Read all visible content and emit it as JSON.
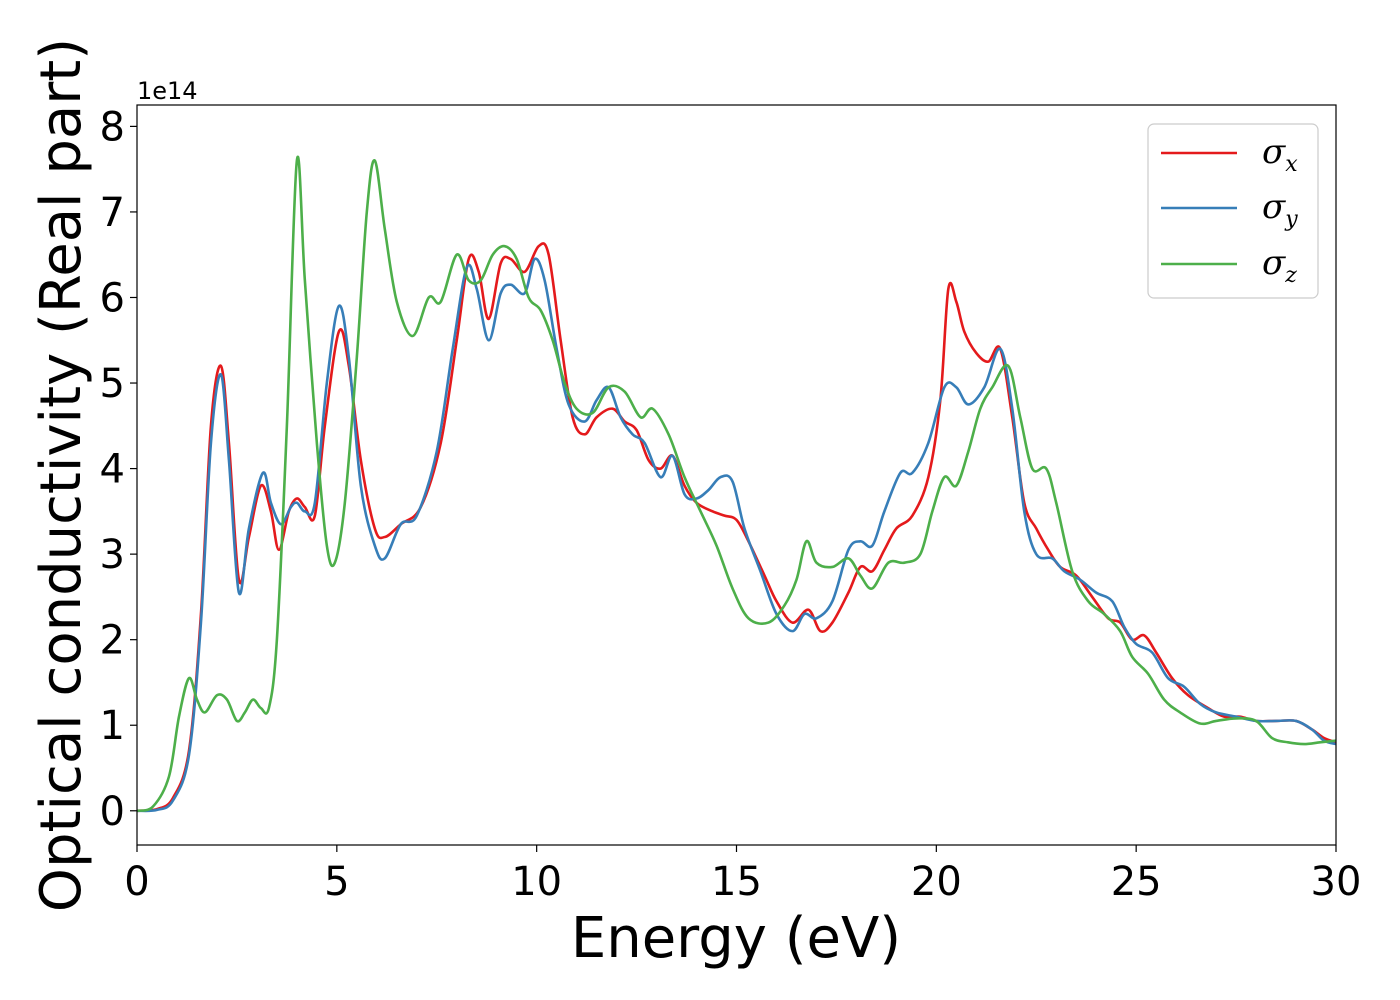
{
  "chart_data": {
    "type": "line",
    "xlabel": "Energy (eV)",
    "ylabel": "Optical conductivity (Real part)",
    "y_offset_text": "1e14",
    "y_scale_factor": 100000000000000.0,
    "xlim": [
      0,
      30
    ],
    "ylim": [
      -0.4,
      8.25
    ],
    "x_ticks": [
      0,
      5,
      10,
      15,
      20,
      25,
      30
    ],
    "x_tick_labels": [
      "0",
      "5",
      "10",
      "15",
      "20",
      "25",
      "30"
    ],
    "y_ticks": [
      0,
      1,
      2,
      3,
      4,
      5,
      6,
      7,
      8
    ],
    "y_tick_labels": [
      "0",
      "1",
      "2",
      "3",
      "4",
      "5",
      "6",
      "7",
      "8"
    ],
    "grid": false,
    "legend_position": "top-right",
    "series": [
      {
        "name": "σx",
        "symbol": "σ",
        "subscript": "x",
        "color": "#e41a1c",
        "points": [
          [
            0,
            0
          ],
          [
            0.5,
            0.02
          ],
          [
            0.9,
            0.15
          ],
          [
            1.3,
            0.7
          ],
          [
            1.6,
            2.3
          ],
          [
            1.85,
            4.5
          ],
          [
            2.1,
            5.2
          ],
          [
            2.3,
            4.3
          ],
          [
            2.55,
            2.7
          ],
          [
            2.8,
            3.2
          ],
          [
            3.1,
            3.8
          ],
          [
            3.35,
            3.5
          ],
          [
            3.55,
            3.05
          ],
          [
            3.8,
            3.5
          ],
          [
            4.0,
            3.65
          ],
          [
            4.2,
            3.55
          ],
          [
            4.45,
            3.45
          ],
          [
            4.7,
            4.5
          ],
          [
            5.05,
            5.6
          ],
          [
            5.3,
            5.2
          ],
          [
            5.6,
            4.1
          ],
          [
            5.95,
            3.3
          ],
          [
            6.2,
            3.2
          ],
          [
            6.6,
            3.35
          ],
          [
            7.1,
            3.55
          ],
          [
            7.6,
            4.3
          ],
          [
            8.0,
            5.5
          ],
          [
            8.3,
            6.45
          ],
          [
            8.55,
            6.3
          ],
          [
            8.8,
            5.75
          ],
          [
            9.1,
            6.4
          ],
          [
            9.35,
            6.45
          ],
          [
            9.7,
            6.3
          ],
          [
            10.05,
            6.6
          ],
          [
            10.3,
            6.5
          ],
          [
            10.6,
            5.5
          ],
          [
            10.9,
            4.6
          ],
          [
            11.2,
            4.4
          ],
          [
            11.5,
            4.6
          ],
          [
            11.9,
            4.7
          ],
          [
            12.2,
            4.55
          ],
          [
            12.5,
            4.45
          ],
          [
            12.8,
            4.1
          ],
          [
            13.1,
            4.0
          ],
          [
            13.4,
            4.15
          ],
          [
            13.7,
            3.8
          ],
          [
            14.0,
            3.6
          ],
          [
            14.4,
            3.5
          ],
          [
            14.7,
            3.45
          ],
          [
            15.0,
            3.4
          ],
          [
            15.3,
            3.15
          ],
          [
            15.7,
            2.75
          ],
          [
            16.0,
            2.45
          ],
          [
            16.4,
            2.2
          ],
          [
            16.8,
            2.35
          ],
          [
            17.1,
            2.1
          ],
          [
            17.4,
            2.2
          ],
          [
            17.8,
            2.55
          ],
          [
            18.1,
            2.85
          ],
          [
            18.4,
            2.8
          ],
          [
            18.7,
            3.05
          ],
          [
            19.0,
            3.3
          ],
          [
            19.4,
            3.45
          ],
          [
            19.8,
            3.9
          ],
          [
            20.1,
            4.8
          ],
          [
            20.3,
            6.1
          ],
          [
            20.5,
            5.95
          ],
          [
            20.7,
            5.6
          ],
          [
            21.0,
            5.35
          ],
          [
            21.3,
            5.25
          ],
          [
            21.6,
            5.4
          ],
          [
            21.9,
            4.6
          ],
          [
            22.2,
            3.6
          ],
          [
            22.5,
            3.3
          ],
          [
            22.8,
            3.05
          ],
          [
            23.1,
            2.85
          ],
          [
            23.5,
            2.75
          ],
          [
            23.9,
            2.5
          ],
          [
            24.3,
            2.25
          ],
          [
            24.6,
            2.2
          ],
          [
            24.9,
            2.0
          ],
          [
            25.2,
            2.05
          ],
          [
            25.5,
            1.85
          ],
          [
            25.9,
            1.55
          ],
          [
            26.3,
            1.35
          ],
          [
            26.8,
            1.2
          ],
          [
            27.2,
            1.1
          ],
          [
            27.6,
            1.1
          ],
          [
            28.0,
            1.05
          ],
          [
            28.5,
            1.05
          ],
          [
            29.0,
            1.05
          ],
          [
            29.4,
            0.95
          ],
          [
            29.7,
            0.85
          ],
          [
            30,
            0.8
          ]
        ]
      },
      {
        "name": "σy",
        "symbol": "σ",
        "subscript": "y",
        "color": "#377eb8",
        "points": [
          [
            0,
            0
          ],
          [
            0.5,
            0.01
          ],
          [
            0.9,
            0.12
          ],
          [
            1.3,
            0.65
          ],
          [
            1.6,
            2.2
          ],
          [
            1.85,
            4.3
          ],
          [
            2.1,
            5.1
          ],
          [
            2.3,
            4.1
          ],
          [
            2.55,
            2.55
          ],
          [
            2.8,
            3.3
          ],
          [
            3.15,
            3.95
          ],
          [
            3.35,
            3.6
          ],
          [
            3.6,
            3.35
          ],
          [
            3.85,
            3.55
          ],
          [
            4.0,
            3.6
          ],
          [
            4.2,
            3.5
          ],
          [
            4.45,
            3.6
          ],
          [
            4.75,
            5.0
          ],
          [
            5.05,
            5.9
          ],
          [
            5.3,
            5.3
          ],
          [
            5.6,
            3.8
          ],
          [
            5.95,
            3.1
          ],
          [
            6.2,
            2.95
          ],
          [
            6.6,
            3.35
          ],
          [
            7.0,
            3.45
          ],
          [
            7.5,
            4.2
          ],
          [
            7.9,
            5.4
          ],
          [
            8.25,
            6.35
          ],
          [
            8.5,
            6.1
          ],
          [
            8.8,
            5.5
          ],
          [
            9.1,
            6.05
          ],
          [
            9.35,
            6.15
          ],
          [
            9.7,
            6.05
          ],
          [
            9.95,
            6.45
          ],
          [
            10.2,
            6.2
          ],
          [
            10.5,
            5.4
          ],
          [
            10.8,
            4.75
          ],
          [
            11.2,
            4.55
          ],
          [
            11.5,
            4.8
          ],
          [
            11.8,
            4.95
          ],
          [
            12.1,
            4.6
          ],
          [
            12.4,
            4.4
          ],
          [
            12.7,
            4.3
          ],
          [
            13.1,
            3.9
          ],
          [
            13.4,
            4.15
          ],
          [
            13.7,
            3.7
          ],
          [
            14.0,
            3.65
          ],
          [
            14.3,
            3.75
          ],
          [
            14.6,
            3.9
          ],
          [
            14.9,
            3.85
          ],
          [
            15.2,
            3.3
          ],
          [
            15.6,
            2.8
          ],
          [
            16.0,
            2.3
          ],
          [
            16.4,
            2.1
          ],
          [
            16.7,
            2.3
          ],
          [
            17.0,
            2.25
          ],
          [
            17.4,
            2.45
          ],
          [
            17.8,
            3.05
          ],
          [
            18.1,
            3.15
          ],
          [
            18.4,
            3.1
          ],
          [
            18.7,
            3.5
          ],
          [
            19.1,
            3.95
          ],
          [
            19.4,
            3.95
          ],
          [
            19.8,
            4.3
          ],
          [
            20.2,
            4.95
          ],
          [
            20.5,
            4.95
          ],
          [
            20.8,
            4.75
          ],
          [
            21.2,
            4.95
          ],
          [
            21.6,
            5.4
          ],
          [
            21.9,
            4.7
          ],
          [
            22.2,
            3.5
          ],
          [
            22.5,
            3.0
          ],
          [
            22.9,
            2.95
          ],
          [
            23.2,
            2.8
          ],
          [
            23.6,
            2.7
          ],
          [
            24.0,
            2.55
          ],
          [
            24.4,
            2.45
          ],
          [
            24.7,
            2.15
          ],
          [
            25.0,
            1.95
          ],
          [
            25.4,
            1.85
          ],
          [
            25.8,
            1.55
          ],
          [
            26.2,
            1.45
          ],
          [
            26.6,
            1.25
          ],
          [
            27.0,
            1.15
          ],
          [
            27.5,
            1.1
          ],
          [
            28.0,
            1.05
          ],
          [
            28.5,
            1.05
          ],
          [
            29.0,
            1.05
          ],
          [
            29.4,
            0.95
          ],
          [
            29.7,
            0.82
          ],
          [
            30,
            0.78
          ]
        ]
      },
      {
        "name": "σz",
        "symbol": "σ",
        "subscript": "z",
        "color": "#4daf4a",
        "points": [
          [
            0,
            0
          ],
          [
            0.4,
            0.05
          ],
          [
            0.8,
            0.4
          ],
          [
            1.05,
            1.1
          ],
          [
            1.3,
            1.55
          ],
          [
            1.5,
            1.3
          ],
          [
            1.7,
            1.15
          ],
          [
            2.0,
            1.35
          ],
          [
            2.25,
            1.3
          ],
          [
            2.5,
            1.05
          ],
          [
            2.7,
            1.15
          ],
          [
            2.9,
            1.3
          ],
          [
            3.1,
            1.2
          ],
          [
            3.3,
            1.2
          ],
          [
            3.5,
            2.0
          ],
          [
            3.75,
            4.5
          ],
          [
            4.0,
            7.6
          ],
          [
            4.2,
            6.2
          ],
          [
            4.5,
            4.3
          ],
          [
            4.75,
            3.1
          ],
          [
            4.95,
            2.9
          ],
          [
            5.2,
            3.6
          ],
          [
            5.5,
            5.3
          ],
          [
            5.75,
            7.0
          ],
          [
            5.95,
            7.6
          ],
          [
            6.2,
            6.8
          ],
          [
            6.5,
            5.95
          ],
          [
            6.9,
            5.55
          ],
          [
            7.3,
            6.0
          ],
          [
            7.6,
            5.95
          ],
          [
            8.0,
            6.5
          ],
          [
            8.3,
            6.2
          ],
          [
            8.6,
            6.2
          ],
          [
            8.9,
            6.5
          ],
          [
            9.2,
            6.6
          ],
          [
            9.5,
            6.45
          ],
          [
            9.8,
            6.0
          ],
          [
            10.1,
            5.85
          ],
          [
            10.4,
            5.5
          ],
          [
            10.7,
            5.0
          ],
          [
            11.0,
            4.7
          ],
          [
            11.4,
            4.65
          ],
          [
            11.8,
            4.95
          ],
          [
            12.2,
            4.9
          ],
          [
            12.6,
            4.6
          ],
          [
            12.9,
            4.7
          ],
          [
            13.3,
            4.4
          ],
          [
            13.7,
            3.9
          ],
          [
            14.1,
            3.5
          ],
          [
            14.5,
            3.1
          ],
          [
            14.9,
            2.6
          ],
          [
            15.3,
            2.25
          ],
          [
            15.8,
            2.2
          ],
          [
            16.2,
            2.4
          ],
          [
            16.5,
            2.7
          ],
          [
            16.75,
            3.15
          ],
          [
            17.0,
            2.9
          ],
          [
            17.4,
            2.85
          ],
          [
            17.8,
            2.95
          ],
          [
            18.1,
            2.75
          ],
          [
            18.4,
            2.6
          ],
          [
            18.8,
            2.9
          ],
          [
            19.2,
            2.9
          ],
          [
            19.6,
            3.0
          ],
          [
            19.9,
            3.5
          ],
          [
            20.2,
            3.9
          ],
          [
            20.5,
            3.8
          ],
          [
            20.8,
            4.2
          ],
          [
            21.1,
            4.7
          ],
          [
            21.4,
            4.95
          ],
          [
            21.8,
            5.2
          ],
          [
            22.1,
            4.6
          ],
          [
            22.4,
            4.0
          ],
          [
            22.75,
            4.0
          ],
          [
            23.0,
            3.6
          ],
          [
            23.4,
            2.8
          ],
          [
            23.8,
            2.45
          ],
          [
            24.2,
            2.3
          ],
          [
            24.6,
            2.1
          ],
          [
            24.9,
            1.8
          ],
          [
            25.3,
            1.6
          ],
          [
            25.7,
            1.3
          ],
          [
            26.1,
            1.15
          ],
          [
            26.6,
            1.02
          ],
          [
            27.0,
            1.05
          ],
          [
            27.5,
            1.08
          ],
          [
            28.0,
            1.05
          ],
          [
            28.4,
            0.85
          ],
          [
            28.8,
            0.8
          ],
          [
            29.2,
            0.78
          ],
          [
            29.6,
            0.8
          ],
          [
            30,
            0.82
          ]
        ]
      }
    ]
  }
}
